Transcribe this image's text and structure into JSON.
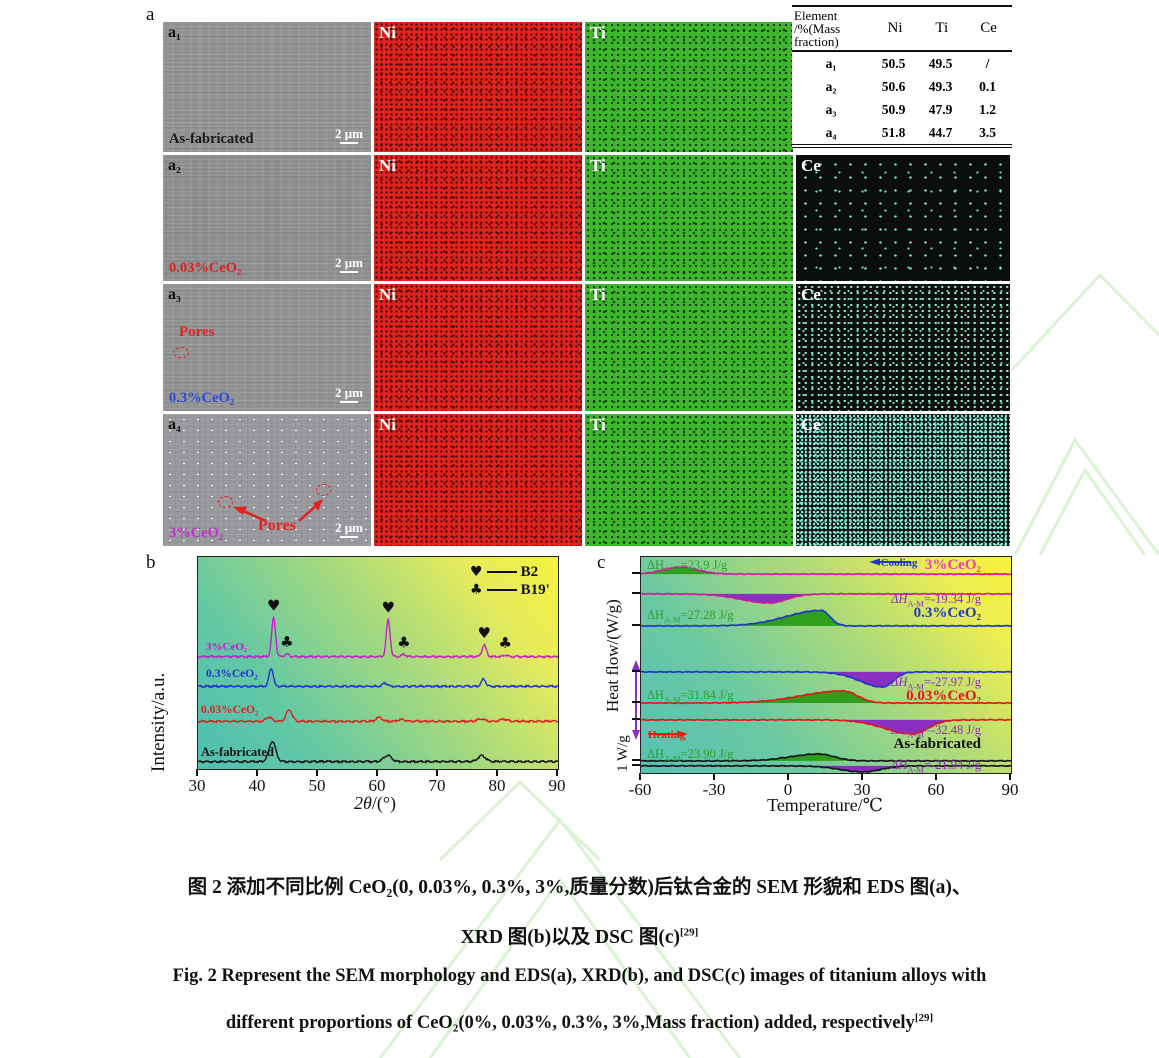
{
  "panels": {
    "a": "a",
    "b": "b",
    "c": "c"
  },
  "eds": {
    "map_labels": {
      "ni": "Ni",
      "ti": "Ti",
      "ce": "Ce"
    },
    "scale_bar": "2 μm",
    "rows": [
      {
        "id": "a₁",
        "sample": "As-fabricated",
        "sample_color": "#1a1a1a"
      },
      {
        "id": "a₂",
        "sample": "0.03%CeO₂",
        "sample_color": "#e02020"
      },
      {
        "id": "a₃",
        "sample": "0.3%CeO₂",
        "sample_color": "#2b4bd7",
        "pores": "Pores"
      },
      {
        "id": "a₄",
        "sample": "3%CeO₂",
        "sample_color": "#c32fd2",
        "pores": "Pores"
      }
    ],
    "table": {
      "header": {
        "col0_line1": "Element",
        "col0_line2": "/%(Mass",
        "col0_line3": "fraction)",
        "col1": "Ni",
        "col2": "Ti",
        "col3": "Ce"
      },
      "rows": [
        {
          "label": "a₁",
          "ni": "50.5",
          "ti": "49.5",
          "ce": "/"
        },
        {
          "label": "a₂",
          "ni": "50.6",
          "ti": "49.3",
          "ce": "0.1"
        },
        {
          "label": "a₃",
          "ni": "50.9",
          "ti": "47.9",
          "ce": "1.2"
        },
        {
          "label": "a₄",
          "ni": "51.8",
          "ti": "44.7",
          "ce": "3.5"
        }
      ]
    }
  },
  "chart_data": [
    {
      "id": "xrd",
      "type": "line",
      "xlabel_italic": "2θ",
      "xlabel_rest": "/(°)",
      "ylabel": "Intensity/a.u.",
      "xlim": [
        30,
        90
      ],
      "xticks": [
        30,
        40,
        50,
        60,
        70,
        80,
        90
      ],
      "legend": [
        {
          "marker": "♥",
          "label": "B2"
        },
        {
          "marker": "♣",
          "label": "B19'"
        }
      ],
      "phase_markers": [
        {
          "symbol": "♥",
          "phase": "B2",
          "x": [
            42.6,
            61.7,
            77.7
          ]
        },
        {
          "symbol": "♣",
          "phase": "B19'",
          "x": [
            44.8,
            64.3,
            81.2
          ]
        }
      ],
      "series": [
        {
          "name": "3%CeO₂",
          "color": "#c81ec8",
          "baseline": 0.47,
          "peaks": [
            {
              "x": 42.6,
              "amp": 0.185,
              "w": 0.45
            },
            {
              "x": 44.8,
              "amp": 0.012,
              "w": 0.5
            },
            {
              "x": 61.7,
              "amp": 0.175,
              "w": 0.45
            },
            {
              "x": 64.3,
              "amp": 0.01,
              "w": 0.5
            },
            {
              "x": 77.7,
              "amp": 0.055,
              "w": 0.5
            },
            {
              "x": 81.2,
              "amp": 0.008,
              "w": 0.5
            }
          ]
        },
        {
          "name": "0.3%CeO₂",
          "color": "#2233cc",
          "baseline": 0.61,
          "peaks": [
            {
              "x": 42.2,
              "amp": 0.085,
              "w": 0.5
            },
            {
              "x": 61.2,
              "amp": 0.015,
              "w": 0.6
            },
            {
              "x": 77.6,
              "amp": 0.035,
              "w": 0.5
            }
          ]
        },
        {
          "name": "0.03%CeO₂",
          "color": "#e02020",
          "baseline": 0.775,
          "peaks": [
            {
              "x": 41.8,
              "amp": 0.02,
              "w": 0.7
            },
            {
              "x": 45.2,
              "amp": 0.055,
              "w": 0.7
            },
            {
              "x": 60.2,
              "amp": 0.018,
              "w": 0.7
            },
            {
              "x": 64.0,
              "amp": 0.01,
              "w": 0.7
            },
            {
              "x": 77.2,
              "amp": 0.012,
              "w": 0.8
            },
            {
              "x": 81.0,
              "amp": 0.01,
              "w": 0.8
            }
          ]
        },
        {
          "name": "As-fabricated",
          "color": "#141414",
          "baseline": 0.965,
          "peaks": [
            {
              "x": 42.4,
              "amp": 0.095,
              "w": 0.8
            },
            {
              "x": 61.6,
              "amp": 0.03,
              "w": 0.9
            },
            {
              "x": 77.3,
              "amp": 0.028,
              "w": 0.9
            }
          ]
        }
      ]
    },
    {
      "id": "dsc",
      "type": "line",
      "xlabel": "Temperature/℃",
      "ylabel": "Heat flow/(W/g)",
      "scale_label": "1 W/g",
      "xlim": [
        -60,
        90
      ],
      "xticks": [
        -60,
        -30,
        0,
        30,
        60,
        90
      ],
      "annotations": {
        "cooling": "Cooling",
        "heating": "Heating"
      },
      "label_colors": {
        "exo": "#2f9e2f",
        "endo": "#8d2bc3"
      },
      "fill_colors": {
        "exo": "#2f9e1c",
        "endo": "#8a2fc0"
      },
      "samples": [
        {
          "name": "3%CeO₂",
          "color": "#d5189e",
          "name_color": "#ee3bb8",
          "cooling": {
            "baseline": 0.079,
            "peak": {
              "x": -44,
              "amp": 0.032,
              "wl": 10,
              "wr": 10
            }
          },
          "heating": {
            "baseline": 0.171,
            "dip": {
              "x": -8,
              "amp": 0.042,
              "wl": 16,
              "wr": 10
            }
          },
          "dh_cooling": {
            "pre": "ΔH",
            "sub": "A-M",
            "val": "=23.9 J/g"
          },
          "dh_heating": {
            "pre": "ΔH",
            "sub": "A-M",
            "val": "=-19.34 J/g"
          }
        },
        {
          "name": "0.3%CeO₂",
          "color": "#2036c8",
          "name_color": "#2439c4",
          "cooling": {
            "baseline": 0.319,
            "peak": {
              "x": 13,
              "amp": 0.072,
              "wl": 20,
              "wr": 5
            }
          },
          "heating": {
            "baseline": 0.532,
            "dip": {
              "x": 38,
              "amp": 0.07,
              "wl": 13,
              "wr": 6
            }
          },
          "dh_cooling": {
            "pre": "ΔH",
            "sub": "A-M",
            "val": "=27.28 J/g"
          },
          "dh_heating": {
            "pre": "ΔH",
            "sub": "A-M",
            "val": "=-27.97 J/g"
          }
        },
        {
          "name": "0.03%CeO₂",
          "color": "#e01818",
          "name_color": "#e01818",
          "cooling": {
            "baseline": 0.676,
            "peak": {
              "x": 22,
              "amp": 0.056,
              "wl": 24,
              "wr": 8
            }
          },
          "heating": {
            "baseline": 0.754,
            "dip": {
              "x": 50,
              "amp": 0.065,
              "wl": 16,
              "wr": 9
            }
          },
          "dh_cooling": {
            "pre": "ΔH",
            "sub": "A-M",
            "val": "=31.84 J/g"
          },
          "dh_heating": {
            "pre": "ΔH",
            "sub": "A-M",
            "val": "=-32.48 J/g"
          }
        },
        {
          "name": "As-fabricated",
          "color": "#151515",
          "name_color": "#111111",
          "cooling": {
            "baseline": 0.944,
            "peak": {
              "x": 12,
              "amp": 0.032,
              "wl": 16,
              "wr": 9
            }
          },
          "heating": {
            "baseline": 0.967,
            "dip": {
              "x": 30,
              "amp": 0.028,
              "wl": 13,
              "wr": 10
            }
          },
          "dh_cooling": {
            "pre": "ΔH",
            "sub": "A-M",
            "val": "=23.90 J/g"
          },
          "dh_heating": {
            "pre": "ΔH",
            "sub": "A-M",
            "val": "=-21.94 J/g"
          }
        }
      ]
    }
  ],
  "captions": {
    "zh_line1": "图 2  添加不同比例 CeO₂(0, 0.03%, 0.3%, 3%,质量分数)后钛合金的 SEM 形貌和 EDS 图(a)、",
    "zh_line2": "XRD 图(b)以及 DSC 图(c)",
    "zh_ref": "[29]",
    "en_line1": "Fig. 2  Represent the SEM morphology and EDS(a), XRD(b), and DSC(c) images of titanium alloys with",
    "en_line2": "different proportions of CeO₂(0%, 0.03%, 0.3%, 3%,Mass fraction) added, respectively",
    "en_ref": "[29]"
  }
}
